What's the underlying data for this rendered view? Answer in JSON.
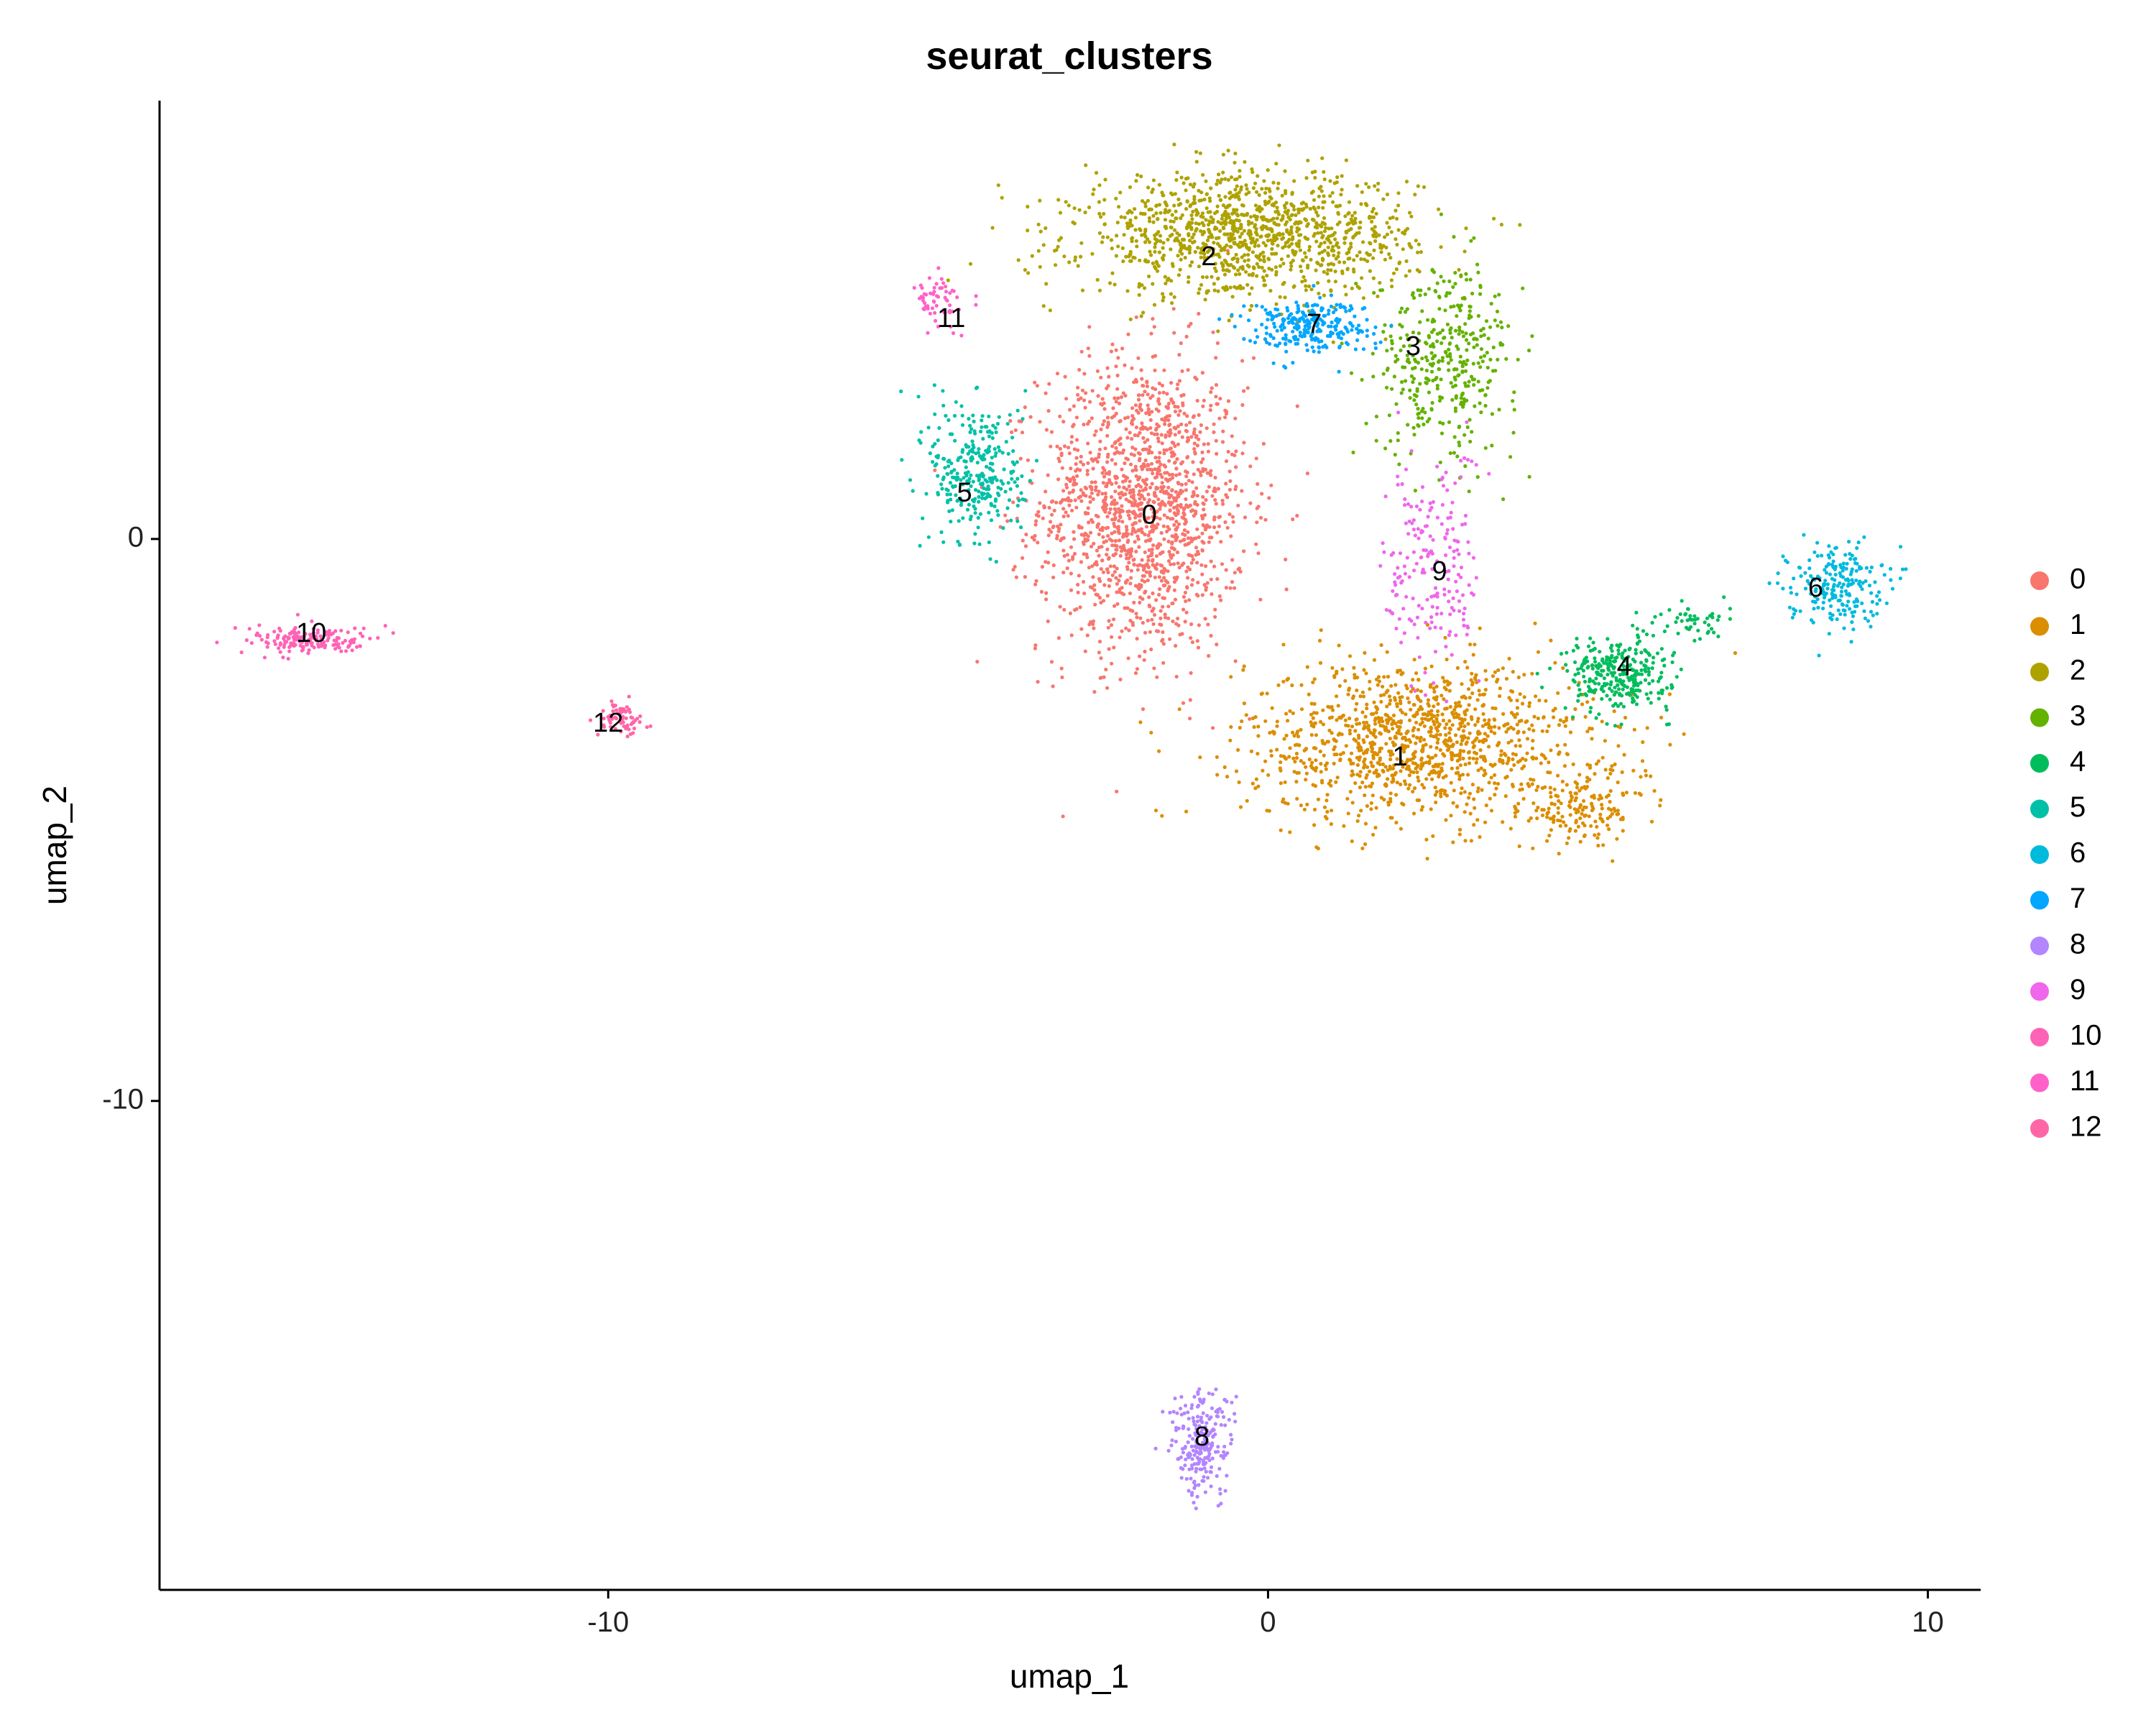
{
  "chart_data": {
    "type": "scatter",
    "title": "seurat_clusters",
    "xlabel": "umap_1",
    "ylabel": "umap_2",
    "xlim": [
      -16.8,
      10.8
    ],
    "ylim": [
      -18.7,
      7.8
    ],
    "x_ticks": [
      {
        "value": -10,
        "label": "-10"
      },
      {
        "value": 0,
        "label": "0"
      },
      {
        "value": 10,
        "label": "10"
      }
    ],
    "y_ticks": [
      {
        "value": 0,
        "label": "0"
      },
      {
        "value": -10,
        "label": "-10"
      }
    ],
    "grid": false,
    "legend_position": "right",
    "point_size": "small",
    "clusters": [
      {
        "name": "0",
        "color": "#F8766D",
        "label_pos": [
          -1.8,
          0.4
        ],
        "regions": [
          {
            "cx": -1.9,
            "cy": 0.6,
            "sx": 1.3,
            "sy": 2.2,
            "n": 1500
          }
        ]
      },
      {
        "name": "1",
        "color": "#DB8E00",
        "label_pos": [
          2.0,
          -3.9
        ],
        "regions": [
          {
            "cx": 2.3,
            "cy": -3.6,
            "sx": 2.2,
            "sy": 1.2,
            "n": 1200
          },
          {
            "cx": 4.8,
            "cy": -4.8,
            "sx": 0.8,
            "sy": 0.5,
            "n": 150
          }
        ]
      },
      {
        "name": "2",
        "color": "#AEA200",
        "label_pos": [
          -0.9,
          5.0
        ],
        "regions": [
          {
            "cx": -0.3,
            "cy": 5.4,
            "sx": 2.1,
            "sy": 0.9,
            "n": 1200
          }
        ]
      },
      {
        "name": "3",
        "color": "#64B200",
        "label_pos": [
          2.2,
          3.4
        ],
        "regions": [
          {
            "cx": 2.7,
            "cy": 3.2,
            "sx": 0.9,
            "sy": 1.4,
            "n": 380
          }
        ]
      },
      {
        "name": "4",
        "color": "#00BD5C",
        "label_pos": [
          5.4,
          -2.3
        ],
        "regions": [
          {
            "cx": 5.3,
            "cy": -2.4,
            "sx": 0.65,
            "sy": 0.55,
            "n": 300
          },
          {
            "cx": 6.4,
            "cy": -1.5,
            "sx": 0.5,
            "sy": 0.3,
            "n": 50
          }
        ]
      },
      {
        "name": "5",
        "color": "#00C1A7",
        "label_pos": [
          -4.6,
          0.8
        ],
        "regions": [
          {
            "cx": -4.4,
            "cy": 1.2,
            "sx": 0.6,
            "sy": 1.1,
            "n": 300
          }
        ]
      },
      {
        "name": "6",
        "color": "#00BADE",
        "label_pos": [
          8.3,
          -0.9
        ],
        "regions": [
          {
            "cx": 8.6,
            "cy": -0.8,
            "sx": 0.6,
            "sy": 0.6,
            "n": 220
          }
        ]
      },
      {
        "name": "7",
        "color": "#00A6FF",
        "label_pos": [
          0.7,
          3.8
        ],
        "regions": [
          {
            "cx": 0.6,
            "cy": 3.8,
            "sx": 0.8,
            "sy": 0.4,
            "n": 260
          }
        ]
      },
      {
        "name": "8",
        "color": "#B385FF",
        "label_pos": [
          -1.0,
          -16.0
        ],
        "regions": [
          {
            "cx": -1.0,
            "cy": -16.1,
            "sx": 0.4,
            "sy": 0.8,
            "n": 230
          }
        ]
      },
      {
        "name": "9",
        "color": "#EF67EB",
        "label_pos": [
          2.6,
          -0.6
        ],
        "regions": [
          {
            "cx": 2.5,
            "cy": -0.5,
            "sx": 0.6,
            "sy": 1.8,
            "n": 200
          }
        ]
      },
      {
        "name": "10",
        "color": "#FF63B6",
        "label_pos": [
          -14.5,
          -1.7
        ],
        "regions": [
          {
            "cx": -14.5,
            "cy": -1.8,
            "sx": 0.8,
            "sy": 0.2,
            "n": 170
          }
        ]
      },
      {
        "name": "11",
        "color": "#FF61C9",
        "label_pos": [
          -4.8,
          3.9
        ],
        "regions": [
          {
            "cx": -5.0,
            "cy": 4.2,
            "sx": 0.3,
            "sy": 0.4,
            "n": 60
          }
        ]
      },
      {
        "name": "12",
        "color": "#FF66A8",
        "label_pos": [
          -10.0,
          -3.3
        ],
        "regions": [
          {
            "cx": -9.8,
            "cy": -3.2,
            "sx": 0.3,
            "sy": 0.25,
            "n": 70
          }
        ]
      }
    ]
  }
}
